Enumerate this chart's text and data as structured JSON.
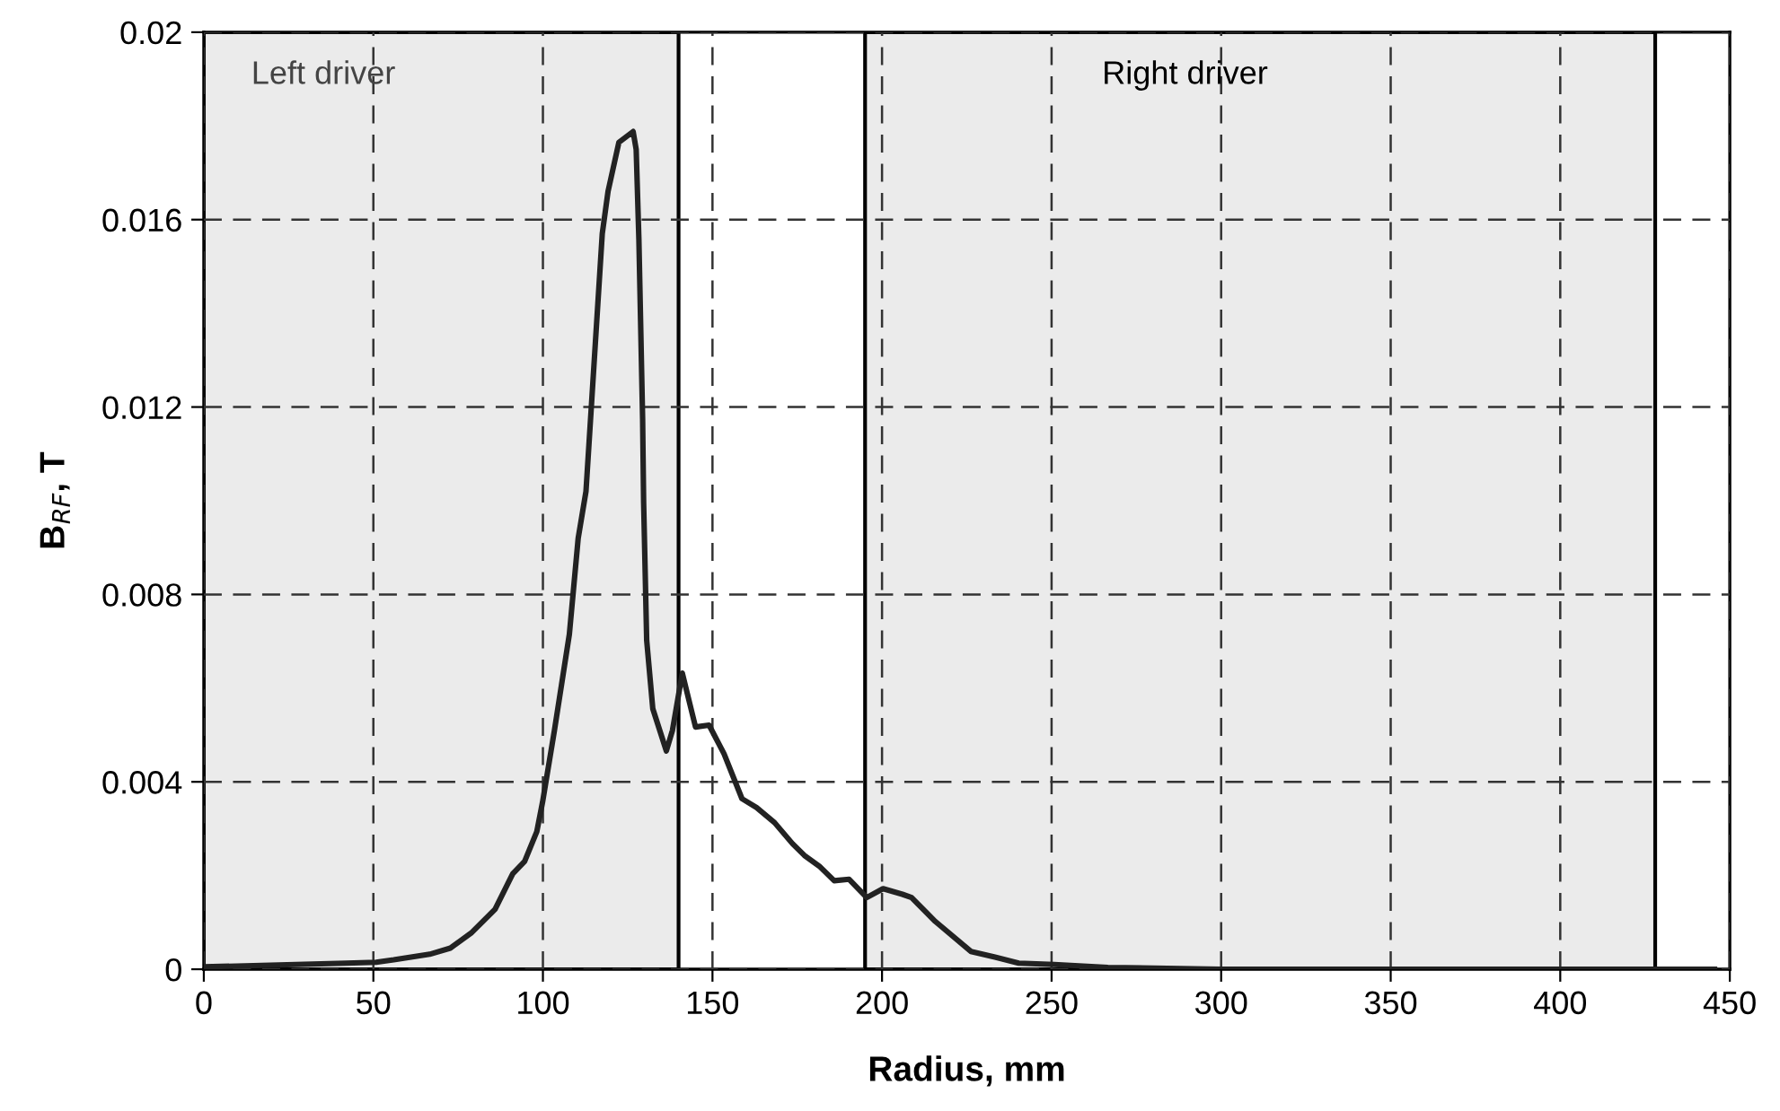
{
  "chart_data": {
    "type": "line",
    "xlabel": "Radius, mm",
    "ylabel": "B$_{RF}$, T",
    "xlim": [
      0,
      450
    ],
    "xticks": [
      0,
      50,
      100,
      150,
      200,
      250,
      300,
      350,
      400,
      450
    ],
    "ylim": [
      0,
      0.02
    ],
    "yticks": [
      0,
      0.004,
      0.008,
      0.012,
      0.016,
      0.02
    ],
    "grid": true,
    "line_style": "solid",
    "marker": "none",
    "legend": false,
    "bands": [
      {
        "axis": "x",
        "from": 0,
        "to": 140,
        "label": "Left driver",
        "color": "#ebebeb"
      },
      {
        "axis": "x",
        "from": 195,
        "to": 428,
        "label": "Right driver",
        "color": "#ebebeb"
      }
    ],
    "series": [
      {
        "color": "#222222",
        "x": [
          0,
          42,
          50.8,
          56,
          66.6,
          72.7,
          78.8,
          85.9,
          91.1,
          94.6,
          98.2,
          99.9,
          103.4,
          107.8,
          110.4,
          112.7,
          117.5,
          119.2,
          122.4,
          126.6,
          127.5,
          128.3,
          129.4,
          129.7,
          130.6,
          132.4,
          136.4,
          138.2,
          141.1,
          145,
          149,
          153.4,
          158.7,
          163,
          168.3,
          173.6,
          177.1,
          181.5,
          185.9,
          190.3,
          195.5,
          200.3,
          206,
          208.7,
          215.7,
          226.2,
          233.3,
          240.3,
          250.8,
          266.6,
          300,
          445.5
        ],
        "values": [
          5e-05,
          0.00013,
          0.00015,
          0.0002,
          0.00032,
          0.00045,
          0.00077,
          0.00128,
          0.00204,
          0.0023,
          0.00294,
          0.00357,
          0.0051,
          0.00715,
          0.0092,
          0.0102,
          0.0157,
          0.0166,
          0.01765,
          0.01788,
          0.0175,
          0.01558,
          0.01175,
          0.00996,
          0.00702,
          0.00556,
          0.00466,
          0.0051,
          0.00632,
          0.00517,
          0.00521,
          0.0046,
          0.00364,
          0.00345,
          0.00313,
          0.00268,
          0.00243,
          0.0022,
          0.00189,
          0.00192,
          0.00153,
          0.00172,
          0.0016,
          0.00153,
          0.00102,
          0.00038,
          0.00026,
          0.00013,
          0.0001,
          4e-05,
          0,
          0
        ]
      }
    ]
  }
}
